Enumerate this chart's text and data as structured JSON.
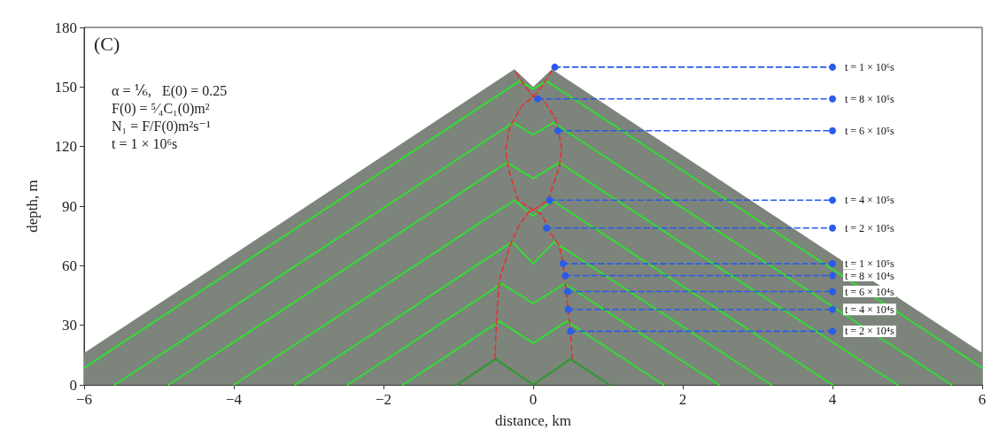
{
  "chart_data": {
    "type": "line",
    "xlabel": "distance, km",
    "ylabel": "depth, m",
    "xlim": [
      -6,
      6
    ],
    "xticks": [
      -6,
      -4,
      -2,
      0,
      2,
      4,
      6
    ],
    "ylim": [
      0,
      180
    ],
    "yticks": [
      0,
      30,
      60,
      90,
      120,
      150,
      180
    ],
    "grid": false,
    "marker": "none",
    "line_style": "solid",
    "series": [
      {
        "type": "area",
        "color": "#7c847c",
        "x": [
          -6,
          -0.25,
          0,
          0.25,
          6
        ],
        "values": [
          16,
          159,
          150,
          159,
          16
        ]
      },
      {
        "color": "#2a9a2a",
        "x": [
          -1.02,
          -0.5,
          0,
          0.5,
          1.02
        ],
        "values": [
          0,
          13,
          0,
          13,
          0
        ]
      },
      {
        "color": "#33dd33",
        "x": [
          -1.74,
          -0.45,
          0,
          0.45,
          1.74
        ],
        "values": [
          0,
          32,
          21,
          32,
          0
        ]
      },
      {
        "color": "#33dd33",
        "x": [
          -2.48,
          -0.42,
          0,
          0.42,
          2.48
        ],
        "values": [
          0,
          51,
          41,
          51,
          0
        ]
      },
      {
        "color": "#33dd33",
        "x": [
          -3.18,
          -0.28,
          0,
          0.28,
          3.18
        ],
        "values": [
          0,
          72,
          61,
          72,
          0
        ]
      },
      {
        "color": "#33dd33",
        "x": [
          -4.0,
          -0.25,
          0,
          0.25,
          4.0
        ],
        "values": [
          0,
          93,
          85,
          93,
          0
        ]
      },
      {
        "color": "#33dd33",
        "x": [
          -4.87,
          -0.35,
          0,
          0.35,
          4.87
        ],
        "values": [
          0,
          112,
          104,
          112,
          0
        ]
      },
      {
        "color": "#33dd33",
        "x": [
          -5.59,
          -0.27,
          0,
          0.27,
          5.59
        ],
        "values": [
          0,
          132,
          126,
          132,
          0
        ]
      },
      {
        "color": "#33dd33",
        "x": [
          -6,
          -0.18,
          0,
          0.18,
          6
        ],
        "values": [
          8.5,
          153,
          149,
          153,
          8.5
        ]
      },
      {
        "color": "#e8322a",
        "line_style": "dashed",
        "x": [
          -0.51,
          -0.49,
          -0.45,
          -0.3,
          -0.18,
          -0.06,
          0,
          0.2,
          0.35,
          0.38,
          0.3,
          0.13,
          0,
          -0.12,
          -0.24
        ],
        "values": [
          13,
          33,
          53,
          71,
          81,
          87,
          88,
          93,
          110,
          120,
          134,
          144,
          145,
          151,
          158
        ]
      },
      {
        "color": "#e8322a",
        "line_style": "dashed",
        "x": [
          0.52,
          0.5,
          0.47,
          0.44,
          0.4,
          0.35,
          0.24,
          0.11,
          0,
          -0.2,
          -0.31,
          -0.37,
          -0.31,
          -0.14,
          0,
          0.13,
          0.28
        ],
        "values": [
          13,
          27,
          38,
          48,
          61,
          70,
          76,
          86,
          88,
          93,
          106,
          118,
          130,
          141,
          145,
          151,
          160
        ]
      },
      {
        "color": "#2a5bea",
        "line_style": "dashed",
        "marker": "circle",
        "x": [
          0.29,
          4
        ],
        "values": [
          160,
          160
        ],
        "value_labels": [
          null,
          "t = 1 × 10⁶s"
        ]
      },
      {
        "color": "#2a5bea",
        "line_style": "dashed",
        "marker": "circle",
        "x": [
          0.06,
          4
        ],
        "values": [
          144,
          144
        ],
        "value_labels": [
          null,
          "t = 8 × 10⁵s"
        ]
      },
      {
        "color": "#2a5bea",
        "line_style": "dashed",
        "marker": "circle",
        "x": [
          0.33,
          4
        ],
        "values": [
          128,
          128
        ],
        "value_labels": [
          null,
          "t = 6 × 10⁵s"
        ]
      },
      {
        "color": "#2a5bea",
        "line_style": "dashed",
        "marker": "circle",
        "x": [
          0.22,
          4
        ],
        "values": [
          93,
          93
        ],
        "value_labels": [
          null,
          "t = 4 × 10⁵s"
        ]
      },
      {
        "color": "#2a5bea",
        "line_style": "dashed",
        "marker": "circle",
        "x": [
          0.18,
          4
        ],
        "values": [
          79,
          79
        ],
        "value_labels": [
          null,
          "t = 2 × 10⁵s"
        ]
      },
      {
        "color": "#2a5bea",
        "line_style": "dashed",
        "marker": "circle",
        "x": [
          0.4,
          4
        ],
        "values": [
          61,
          61
        ],
        "value_labels": [
          null,
          "t = 1 × 10⁵s"
        ]
      },
      {
        "color": "#2a5bea",
        "line_style": "dashed",
        "marker": "circle",
        "x": [
          0.43,
          4
        ],
        "values": [
          55,
          55
        ],
        "value_labels": [
          null,
          "t = 8 × 10⁴s"
        ]
      },
      {
        "color": "#2a5bea",
        "line_style": "dashed",
        "marker": "circle",
        "x": [
          0.46,
          4
        ],
        "values": [
          47,
          47
        ],
        "value_labels": [
          null,
          "t = 6 × 10⁴s"
        ]
      },
      {
        "color": "#2a5bea",
        "line_style": "dashed",
        "marker": "circle",
        "x": [
          0.47,
          4
        ],
        "values": [
          38,
          38
        ],
        "value_labels": [
          null,
          "t = 4 × 10⁴s"
        ]
      },
      {
        "color": "#2a5bea",
        "line_style": "dashed",
        "marker": "circle",
        "x": [
          0.5,
          4
        ],
        "values": [
          27,
          27
        ],
        "value_labels": [
          null,
          "t = 2 × 10⁴s"
        ]
      }
    ],
    "annotations": [
      "(C)",
      "α = ⅙,   E(0) = 0.25",
      "F(0) = ⁵⁄₄C₁(0)m²",
      "N₁ = F/F(0)m²s⁻¹",
      "t = 1 × 10⁶s"
    ]
  }
}
